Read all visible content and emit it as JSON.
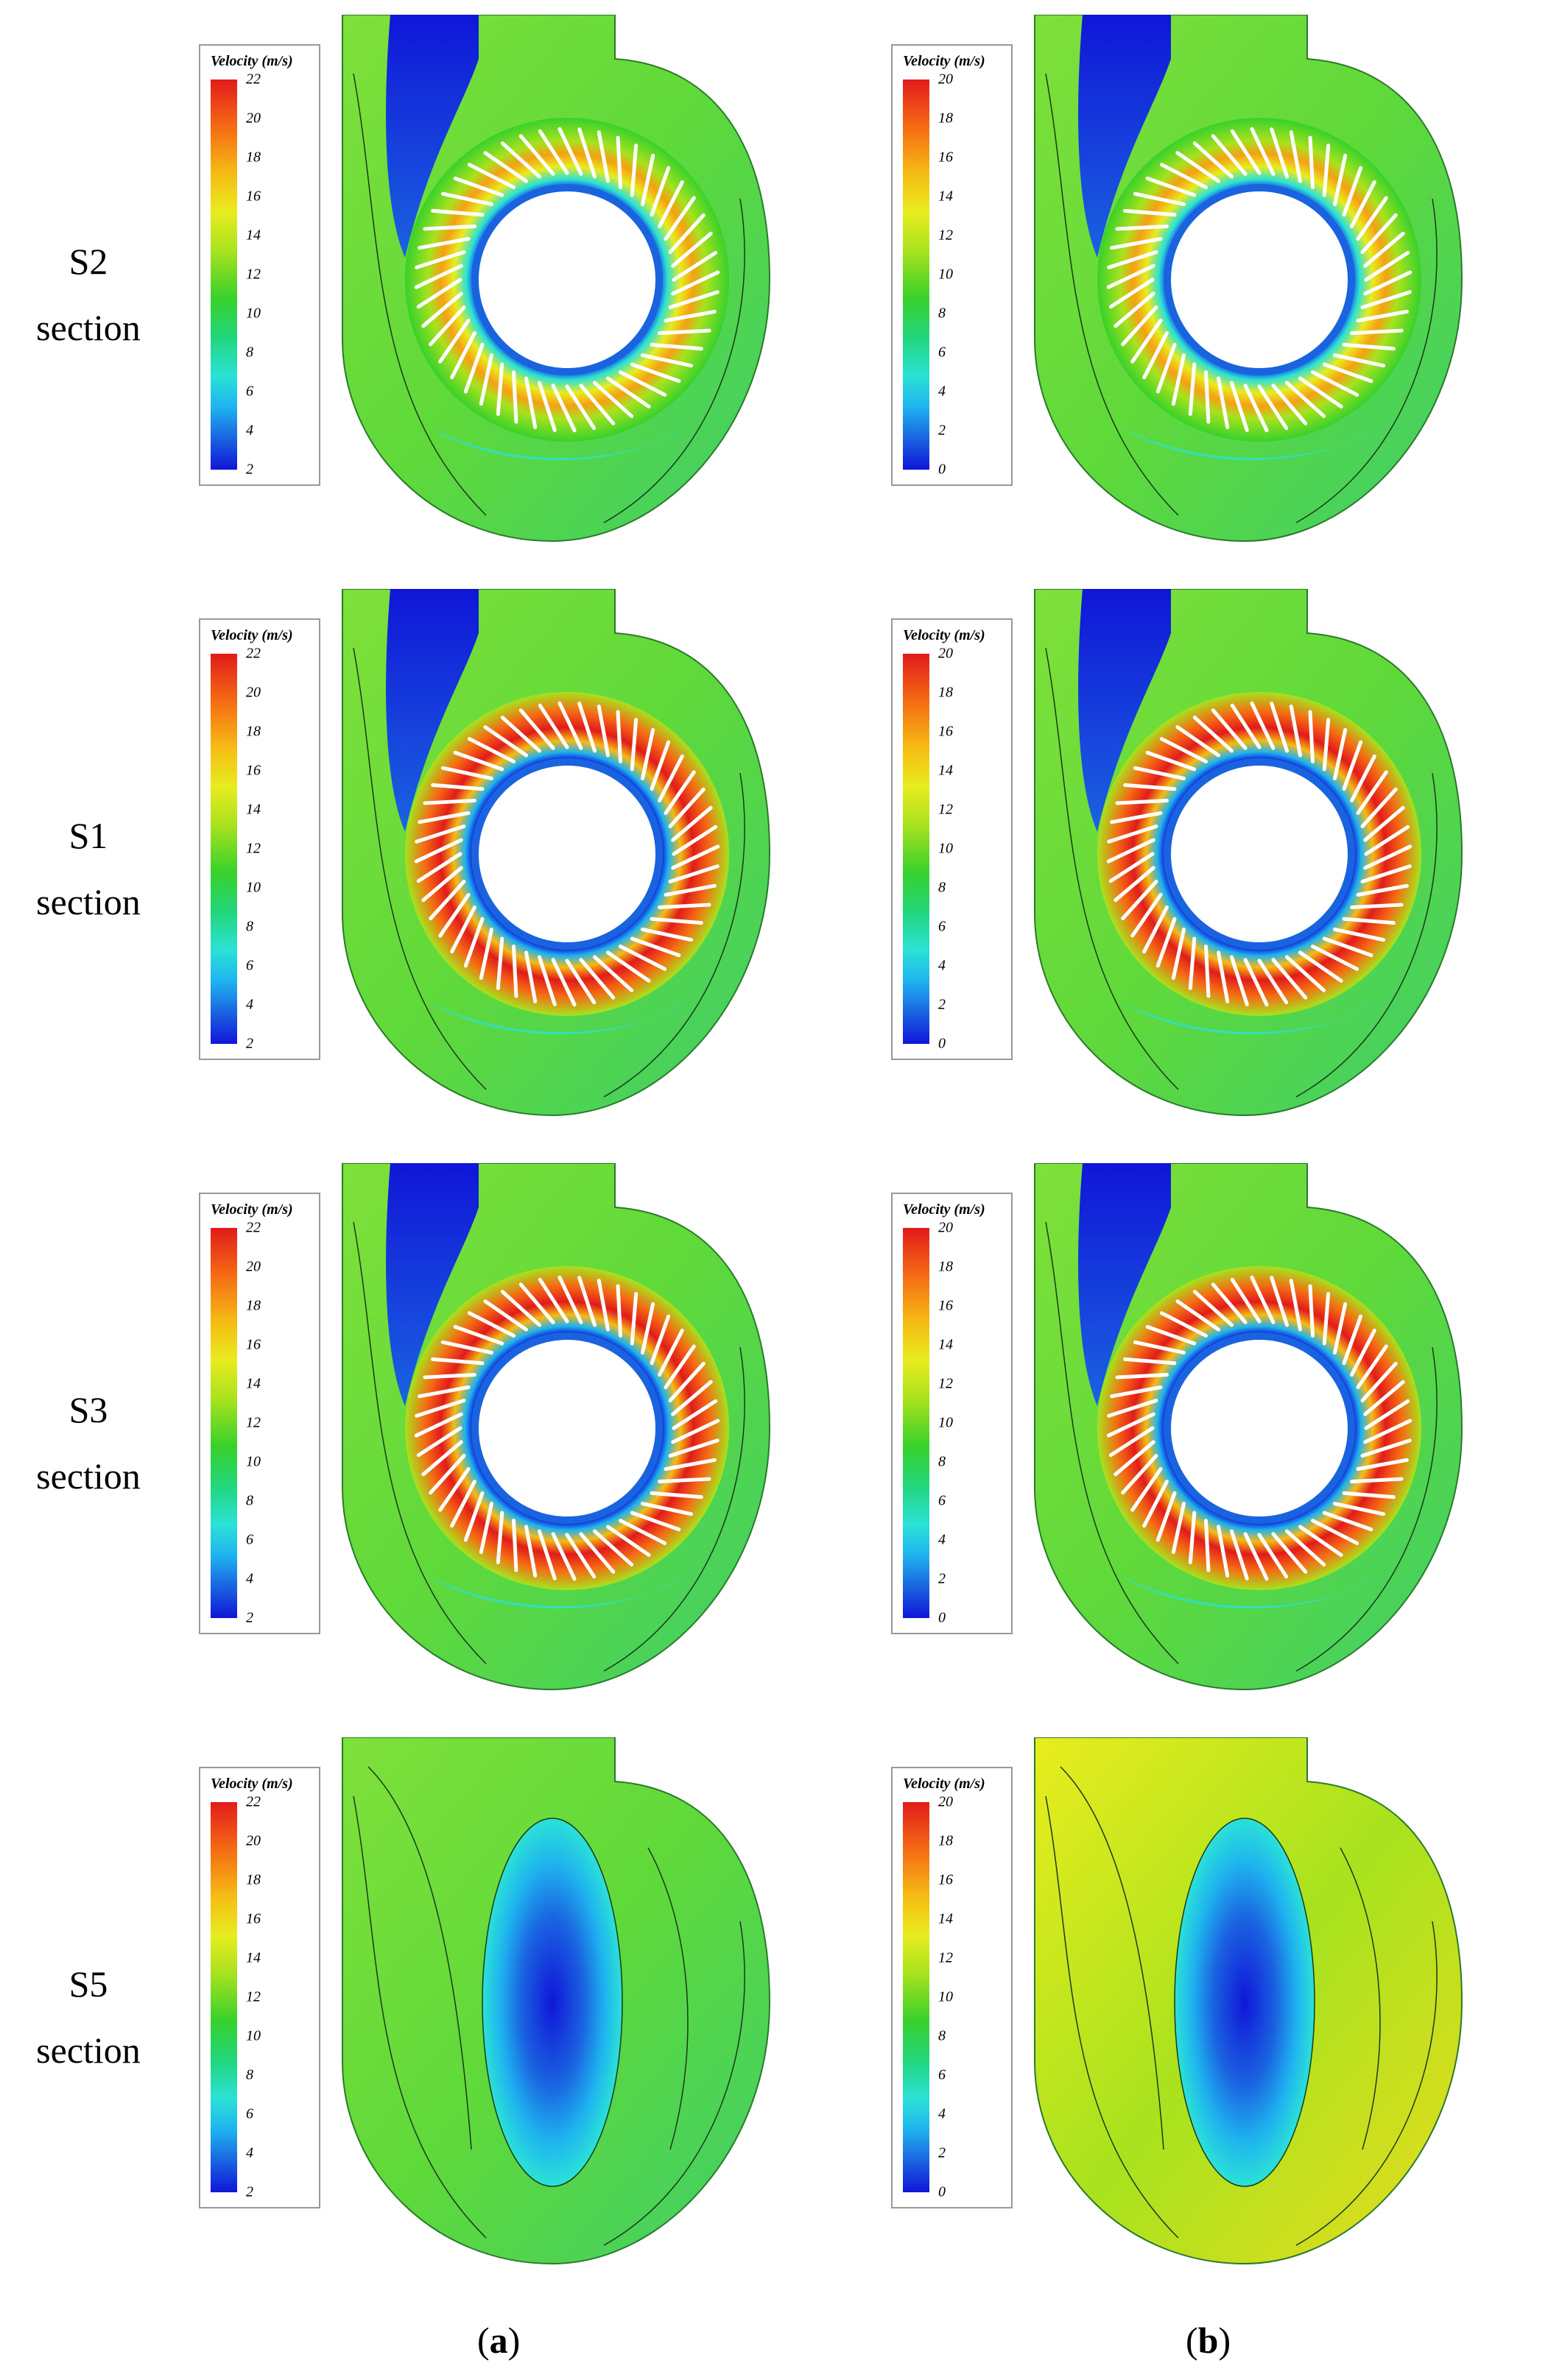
{
  "rows": [
    {
      "line1": "S2",
      "line2": "section"
    },
    {
      "line1": "S1",
      "line2": "section"
    },
    {
      "line1": "S3",
      "line2": "section"
    },
    {
      "line1": "S5",
      "line2": "section"
    }
  ],
  "legend_title": "Velocity (m/s)",
  "legend_a_ticks": [
    "22",
    "20",
    "18",
    "16",
    "14",
    "12",
    "10",
    "8",
    "6",
    "4",
    "2"
  ],
  "legend_b_ticks": [
    "20",
    "18",
    "16",
    "14",
    "12",
    "10",
    "8",
    "6",
    "4",
    "2",
    "0"
  ],
  "captions": {
    "a": "a",
    "b": "b"
  },
  "colors": {
    "red": "#e11b1b",
    "orange": "#f5a014",
    "yellow": "#e8ec1e",
    "green": "#38d12b",
    "cyan": "#2be2d6",
    "blue": "#1016d8"
  }
}
